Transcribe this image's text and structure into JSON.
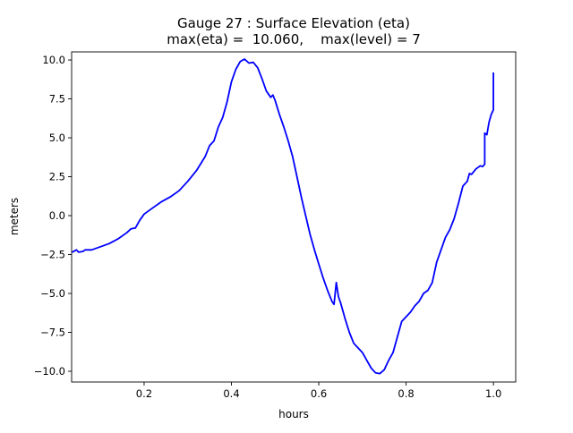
{
  "chart_data": {
    "type": "line",
    "title_lines": [
      "Gauge 27 : Surface Elevation (eta)",
      "max(eta) =  10.060,    max(level) = 7"
    ],
    "xlabel": "hours",
    "ylabel": "meters",
    "xlim": [
      0.034,
      1.051
    ],
    "ylim": [
      -10.69,
      10.52
    ],
    "xticks": [
      0.2,
      0.4,
      0.6,
      0.8,
      1.0
    ],
    "xtick_labels": [
      "0.2",
      "0.4",
      "0.6",
      "0.8",
      "1.0"
    ],
    "yticks": [
      -10,
      -7.5,
      -5,
      -2.5,
      0,
      2.5,
      5,
      7.5,
      10
    ],
    "ytick_labels": [
      "−10.0",
      "−7.5",
      "−5.0",
      "−2.5",
      "0.0",
      "2.5",
      "5.0",
      "7.5",
      "10.0"
    ],
    "grid": false,
    "series": [
      {
        "name": "eta",
        "color": "#0000ff",
        "x": [
          0.035,
          0.045,
          0.05,
          0.06,
          0.065,
          0.08,
          0.1,
          0.12,
          0.14,
          0.16,
          0.17,
          0.18,
          0.19,
          0.2,
          0.22,
          0.24,
          0.26,
          0.28,
          0.3,
          0.32,
          0.34,
          0.35,
          0.36,
          0.37,
          0.38,
          0.39,
          0.4,
          0.41,
          0.42,
          0.43,
          0.44,
          0.45,
          0.46,
          0.47,
          0.48,
          0.49,
          0.495,
          0.5,
          0.51,
          0.52,
          0.53,
          0.54,
          0.55,
          0.56,
          0.57,
          0.58,
          0.59,
          0.6,
          0.61,
          0.62,
          0.63,
          0.635,
          0.64,
          0.645,
          0.65,
          0.66,
          0.67,
          0.68,
          0.69,
          0.7,
          0.71,
          0.72,
          0.73,
          0.74,
          0.75,
          0.76,
          0.77,
          0.78,
          0.79,
          0.8,
          0.81,
          0.82,
          0.83,
          0.84,
          0.85,
          0.86,
          0.87,
          0.88,
          0.89,
          0.9,
          0.91,
          0.92,
          0.93,
          0.94,
          0.945,
          0.95,
          0.96,
          0.97,
          0.975,
          0.98,
          0.98,
          0.985,
          0.99,
          0.995,
          1.0,
          1.0
        ],
        "y": [
          -2.35,
          -2.2,
          -2.35,
          -2.3,
          -2.2,
          -2.2,
          -2.0,
          -1.8,
          -1.5,
          -1.1,
          -0.85,
          -0.8,
          -0.3,
          0.1,
          0.5,
          0.9,
          1.2,
          1.6,
          2.2,
          2.9,
          3.8,
          4.5,
          4.8,
          5.7,
          6.3,
          7.3,
          8.6,
          9.4,
          9.9,
          10.06,
          9.8,
          9.85,
          9.5,
          8.8,
          8.0,
          7.6,
          7.75,
          7.4,
          6.5,
          5.7,
          4.8,
          3.8,
          2.5,
          1.2,
          0.0,
          -1.2,
          -2.2,
          -3.1,
          -4.0,
          -4.8,
          -5.5,
          -5.7,
          -4.3,
          -5.2,
          -5.6,
          -6.6,
          -7.5,
          -8.2,
          -8.5,
          -8.8,
          -9.3,
          -9.8,
          -10.1,
          -10.15,
          -9.9,
          -9.3,
          -8.8,
          -7.8,
          -6.8,
          -6.5,
          -6.2,
          -5.8,
          -5.5,
          -5.0,
          -4.8,
          -4.3,
          -3.0,
          -2.2,
          -1.4,
          -0.9,
          -0.2,
          0.8,
          1.9,
          2.2,
          2.7,
          2.65,
          3.0,
          3.2,
          3.15,
          3.3,
          5.3,
          5.2,
          6.0,
          6.5,
          6.8,
          9.2
        ]
      }
    ]
  }
}
